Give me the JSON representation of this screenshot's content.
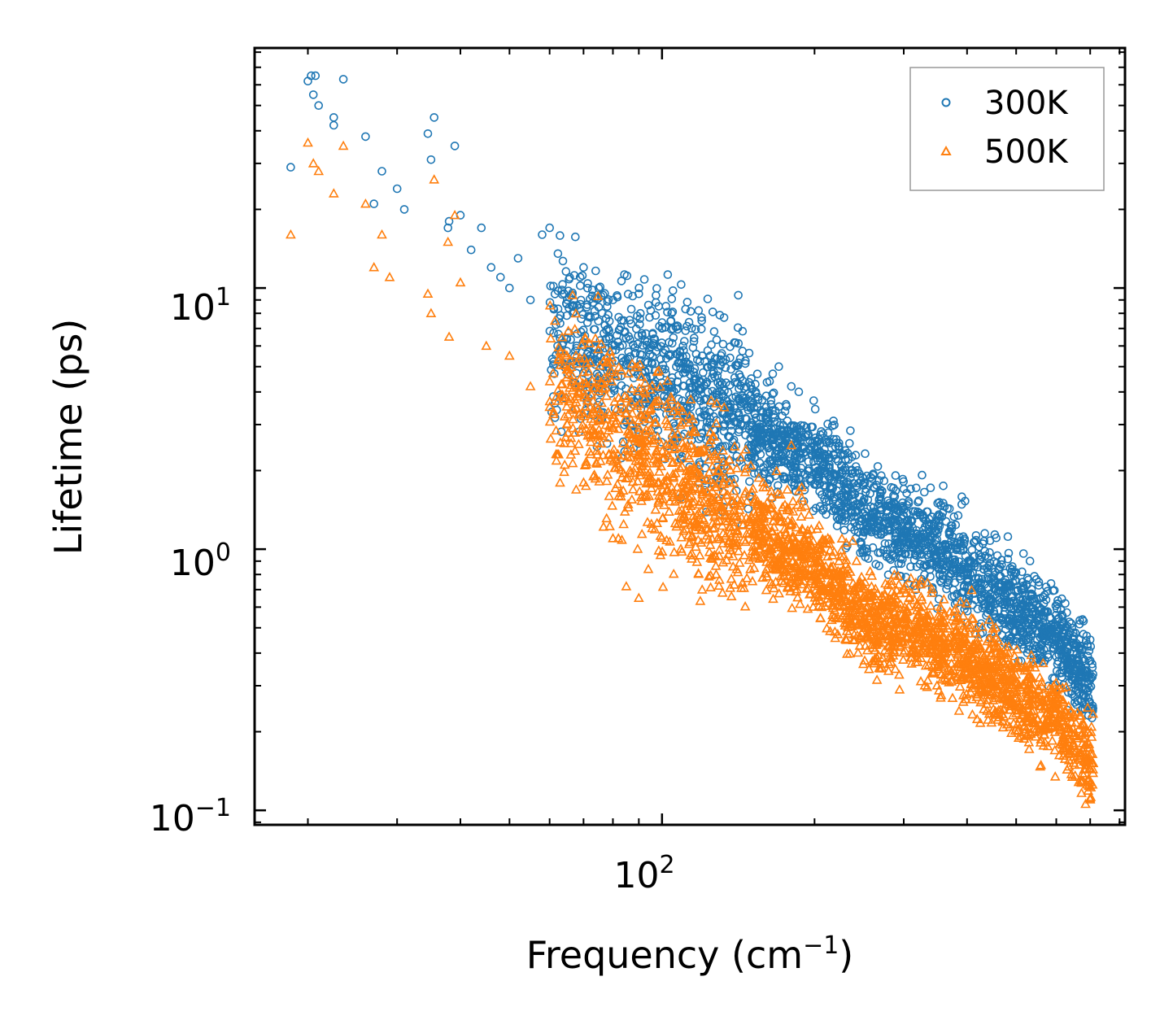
{
  "chart_data": {
    "type": "scatter",
    "title": "",
    "xlabel": "Frequency (cm",
    "xlabel_sup": "−1",
    "xlabel_end": ")",
    "ylabel": "Lifetime (ps)",
    "xscale": "log",
    "yscale": "log",
    "xlim": [
      15.7,
      820
    ],
    "ylim": [
      0.088,
      83
    ],
    "x_ticks": [
      {
        "base": "10",
        "exp": "2",
        "value": 100
      }
    ],
    "y_ticks": [
      {
        "base": "10",
        "exp": "−1",
        "value": 0.1
      },
      {
        "base": "10",
        "exp": "0",
        "value": 1
      },
      {
        "base": "10",
        "exp": "1",
        "value": 10
      }
    ],
    "legend": {
      "position": "top-right",
      "entries": [
        "300K",
        "500K"
      ]
    },
    "colors": {
      "300K": "#1f77b4",
      "500K": "#ff7f0e",
      "axes": "#000000",
      "legend_border": "#999999"
    },
    "series": [
      {
        "name": "300K",
        "marker": "circle",
        "trend_x": [
          18.5,
          25,
          35,
          50,
          70,
          100,
          150,
          200,
          250,
          300,
          350,
          400,
          500,
          600,
          700
        ],
        "trend_y": [
          40,
          25,
          15,
          9,
          6.0,
          4.5,
          3.0,
          2.2,
          1.4,
          1.2,
          1.0,
          0.85,
          0.6,
          0.48,
          0.3
        ],
        "x": [
          18.5,
          20,
          20.3,
          20.5,
          20.7,
          21,
          22.5,
          22.5,
          23.5,
          26,
          27,
          28,
          30,
          31,
          34.5,
          35,
          35.5,
          37.8,
          38,
          39,
          40,
          42,
          44,
          46,
          48,
          50,
          52,
          55,
          58,
          60,
          65,
          70,
          75,
          80,
          90,
          95,
          100,
          110,
          120,
          150,
          170,
          180,
          250,
          300,
          350,
          620,
          700
        ],
        "y": [
          29,
          62,
          65,
          55,
          65,
          50,
          45,
          42,
          63,
          38,
          21,
          28,
          24,
          20,
          39,
          31,
          45,
          17,
          18,
          35,
          19,
          14,
          17,
          12,
          11,
          10,
          13,
          9,
          16,
          17,
          9,
          12,
          10,
          9,
          9.5,
          8.2,
          7,
          6,
          5.5,
          4.5,
          5,
          4.2,
          1.8,
          1.7,
          1.5,
          0.52,
          0.45
        ]
      },
      {
        "name": "500K",
        "marker": "triangle",
        "trend_x": [
          18.5,
          25,
          35,
          50,
          70,
          100,
          150,
          200,
          250,
          300,
          350,
          400,
          500,
          600,
          700
        ],
        "trend_y": [
          25,
          15,
          9,
          6,
          3.5,
          2.0,
          1.2,
          0.9,
          0.55,
          0.5,
          0.45,
          0.38,
          0.28,
          0.22,
          0.15
        ],
        "x": [
          18.5,
          20,
          20.5,
          21,
          22.5,
          23.5,
          26,
          27,
          28,
          29,
          34.5,
          35,
          35.5,
          37.8,
          38,
          39,
          40,
          45,
          50,
          55,
          60,
          65,
          70,
          80,
          82,
          85,
          90,
          120,
          180,
          300,
          700
        ],
        "y": [
          16,
          36,
          30,
          28,
          23,
          35,
          21,
          12,
          16,
          11,
          9.5,
          8,
          26,
          15,
          6.5,
          19,
          10.5,
          6,
          5.5,
          4.2,
          3.5,
          3.0,
          1.8,
          1.1,
          1.1,
          0.72,
          0.65,
          0.7,
          2.5,
          0.7,
          0.11
        ]
      }
    ]
  }
}
